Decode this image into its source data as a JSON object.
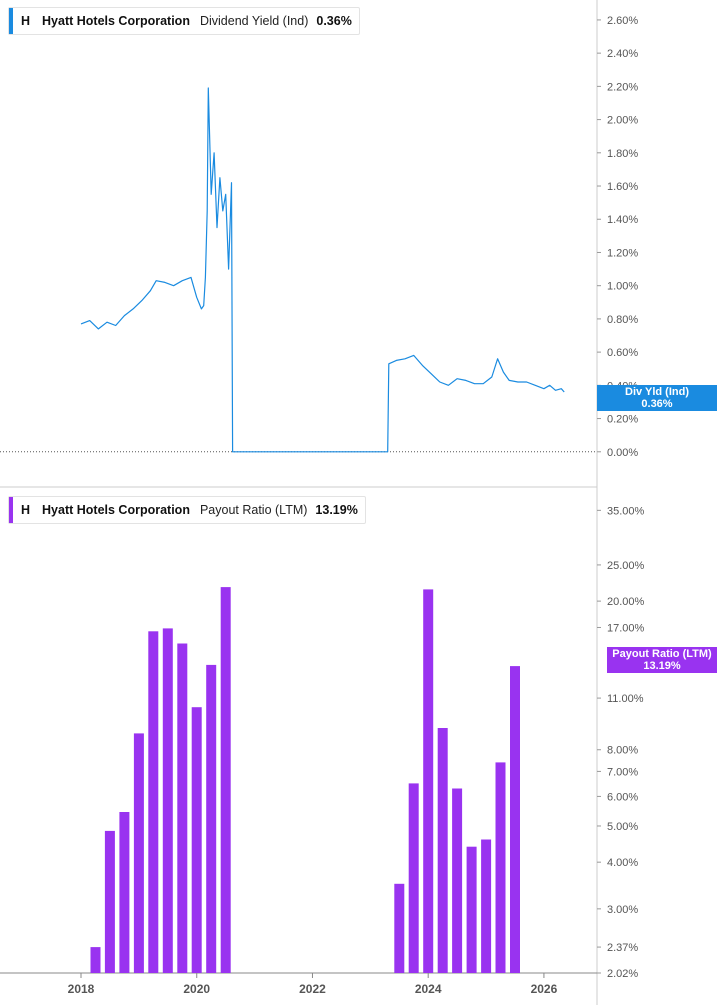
{
  "colors": {
    "yield_line": "#1a8be0",
    "payout_bar": "#9933f0",
    "axis_text": "#555555",
    "grid_line": "#cccccc",
    "zero_line": "#555555"
  },
  "legend_top": {
    "ticker": "H",
    "company": "Hyatt Hotels Corporation",
    "metric": "Dividend Yield (Ind)",
    "value": "0.36%"
  },
  "legend_bottom": {
    "ticker": "H",
    "company": "Payout Ratio (LTM)",
    "company_name": "Hyatt Hotels Corporation",
    "metric": "Payout Ratio (LTM)",
    "value": "13.19%"
  },
  "tags": {
    "yield": {
      "label": "Div Yld (Ind)",
      "value": "0.36%"
    },
    "payout": {
      "label": "Payout Ratio (LTM)",
      "value": "13.19%"
    }
  },
  "chart_data": [
    {
      "type": "line",
      "series": [
        {
          "name": "Dividend Yield (Ind)",
          "color": "#1a8be0"
        }
      ],
      "x": [
        2018.0,
        2018.15,
        2018.3,
        2018.45,
        2018.6,
        2018.75,
        2018.9,
        2019.05,
        2019.2,
        2019.3,
        2019.45,
        2019.6,
        2019.75,
        2019.9,
        2020.0,
        2020.08,
        2020.12,
        2020.15,
        2020.18,
        2020.2,
        2020.25,
        2020.3,
        2020.35,
        2020.4,
        2020.45,
        2020.5,
        2020.55,
        2020.6,
        2020.62,
        2023.3,
        2023.32,
        2023.45,
        2023.6,
        2023.75,
        2023.9,
        2024.05,
        2024.2,
        2024.35,
        2024.5,
        2024.65,
        2024.8,
        2024.95,
        2025.1,
        2025.2,
        2025.3,
        2025.4,
        2025.55,
        2025.7,
        2025.85,
        2026.0,
        2026.1,
        2026.2,
        2026.3,
        2026.35
      ],
      "y": [
        0.77,
        0.79,
        0.74,
        0.78,
        0.76,
        0.82,
        0.86,
        0.91,
        0.97,
        1.03,
        1.02,
        1.0,
        1.03,
        1.05,
        0.93,
        0.86,
        0.88,
        1.05,
        1.45,
        2.19,
        1.55,
        1.8,
        1.35,
        1.65,
        1.45,
        1.55,
        1.1,
        1.62,
        0.0,
        0.0,
        0.53,
        0.55,
        0.56,
        0.58,
        0.52,
        0.47,
        0.42,
        0.4,
        0.44,
        0.43,
        0.41,
        0.41,
        0.45,
        0.56,
        0.48,
        0.43,
        0.42,
        0.42,
        0.4,
        0.38,
        0.4,
        0.37,
        0.38,
        0.36
      ],
      "xlim": [
        2016.6,
        2026.9
      ],
      "ylim": [
        -0.2,
        2.72
      ],
      "yticks": [
        "0.00%",
        "0.20%",
        "0.40%",
        "0.60%",
        "0.80%",
        "1.00%",
        "1.20%",
        "1.40%",
        "1.60%",
        "1.80%",
        "2.00%",
        "2.20%",
        "2.40%",
        "2.60%"
      ],
      "ytick_values": [
        0.0,
        0.2,
        0.4,
        0.6,
        0.8,
        1.0,
        1.2,
        1.4,
        1.6,
        1.8,
        2.0,
        2.2,
        2.4,
        2.6
      ],
      "yscale": "linear",
      "zero_line": "dotted",
      "legend": "top-left"
    },
    {
      "type": "bar",
      "series": [
        {
          "name": "Payout Ratio (LTM)",
          "color": "#9933f0"
        }
      ],
      "x": [
        2018.25,
        2018.5,
        2018.75,
        2019.0,
        2019.25,
        2019.5,
        2019.75,
        2020.0,
        2020.25,
        2020.5,
        2023.5,
        2023.75,
        2024.0,
        2024.25,
        2024.5,
        2024.75,
        2025.0,
        2025.25,
        2025.5
      ],
      "values": [
        2.37,
        4.85,
        5.45,
        8.85,
        16.6,
        16.9,
        15.4,
        10.4,
        13.5,
        21.8,
        3.5,
        6.5,
        21.5,
        9.15,
        6.3,
        4.4,
        4.6,
        7.4,
        13.4
      ],
      "xlim": [
        2016.6,
        2026.9
      ],
      "ylim": [
        2.02,
        38.0
      ],
      "yscale": "log",
      "yticks": [
        "2.02%",
        "2.37%",
        "3.00%",
        "4.00%",
        "5.00%",
        "6.00%",
        "7.00%",
        "8.00%",
        "11.00%",
        "17.00%",
        "20.00%",
        "25.00%",
        "35.00%"
      ],
      "ytick_values": [
        2.02,
        2.37,
        3.0,
        4.0,
        5.0,
        6.0,
        7.0,
        8.0,
        11.0,
        17.0,
        20.0,
        25.0,
        35.0
      ],
      "xticks": [
        "2018",
        "2020",
        "2022",
        "2024",
        "2026"
      ],
      "xtick_values": [
        2018,
        2020,
        2022,
        2024,
        2026
      ],
      "legend": "top-left"
    }
  ]
}
